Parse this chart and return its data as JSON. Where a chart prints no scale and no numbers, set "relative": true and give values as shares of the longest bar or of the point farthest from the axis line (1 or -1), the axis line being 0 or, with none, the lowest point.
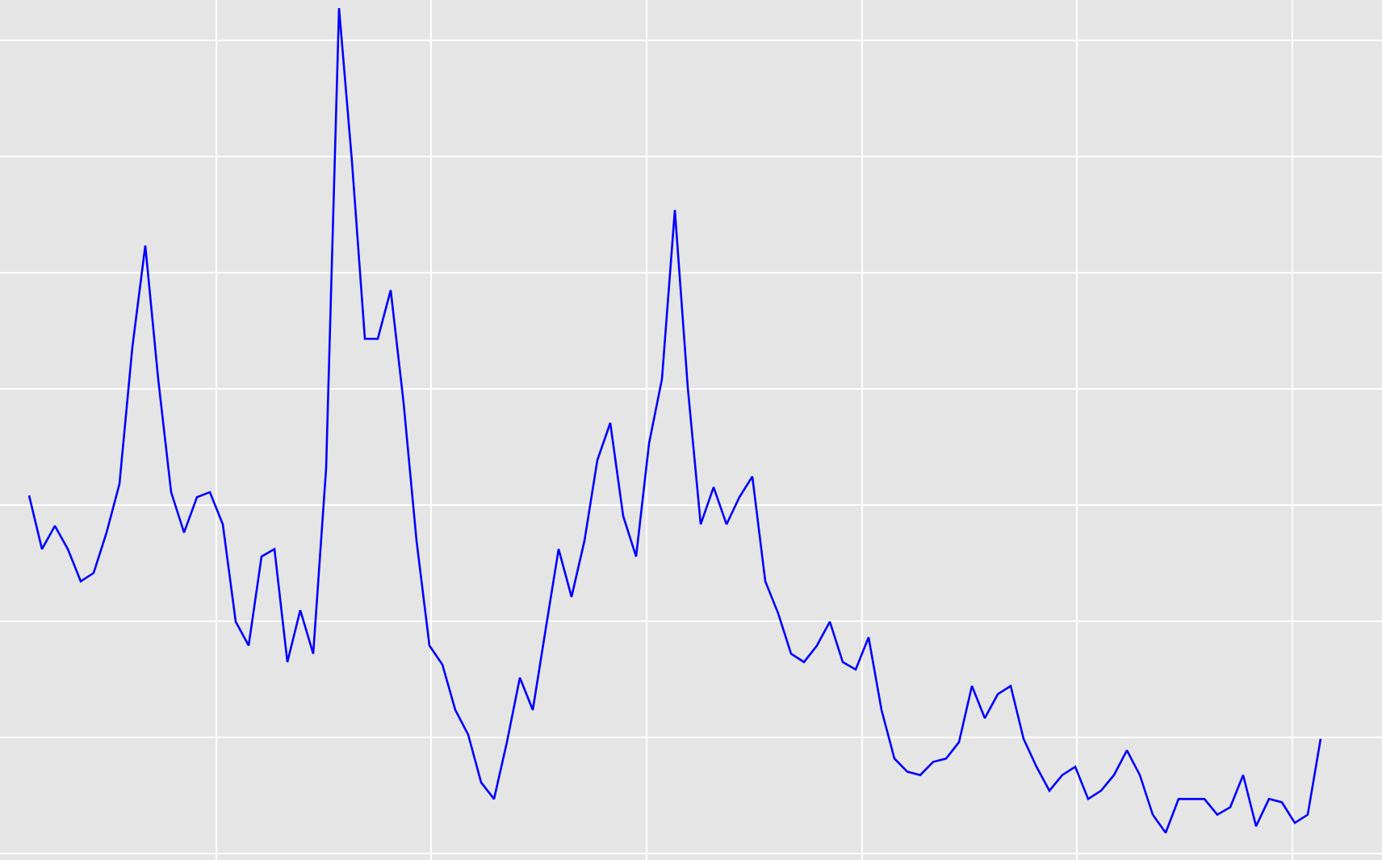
{
  "chart_data": {
    "type": "line",
    "relative": true,
    "grid": true,
    "legend": false,
    "categories": [
      null,
      null,
      null,
      null,
      null,
      null,
      null,
      null,
      null,
      null,
      null,
      null,
      null,
      null,
      null,
      null,
      null,
      null,
      null,
      null,
      null,
      null,
      null,
      null,
      null,
      null,
      null,
      null,
      null,
      null,
      null,
      null,
      null,
      null,
      null,
      null,
      null,
      null,
      null,
      null,
      null,
      null,
      null,
      null,
      null,
      null,
      null,
      null,
      null,
      null,
      null,
      null,
      null,
      null,
      null,
      null,
      null,
      null,
      null,
      null,
      null,
      null,
      null,
      null,
      null,
      null,
      null,
      null,
      null,
      null,
      null,
      null,
      null,
      null,
      null,
      null,
      null,
      null,
      null,
      null,
      null,
      null,
      null,
      null,
      null,
      null,
      null,
      null,
      null,
      null,
      null,
      null,
      null,
      null,
      null,
      null,
      null,
      null,
      null,
      null,
      null
    ],
    "series": [
      {
        "color": "#0000ff",
        "values": [
          0.409,
          0.344,
          0.372,
          0.344,
          0.305,
          0.315,
          0.364,
          0.423,
          0.589,
          0.712,
          0.55,
          0.413,
          0.364,
          0.407,
          0.413,
          0.374,
          0.256,
          0.227,
          0.335,
          0.344,
          0.207,
          0.27,
          0.217,
          0.442,
          1.0,
          0.814,
          0.599,
          0.599,
          0.658,
          0.521,
          0.354,
          0.227,
          0.204,
          0.149,
          0.119,
          0.061,
          0.041,
          0.11,
          0.188,
          0.149,
          0.247,
          0.344,
          0.286,
          0.354,
          0.452,
          0.497,
          0.384,
          0.335,
          0.472,
          0.55,
          0.755,
          0.54,
          0.374,
          0.419,
          0.374,
          0.407,
          0.432,
          0.305,
          0.266,
          0.217,
          0.207,
          0.227,
          0.256,
          0.207,
          0.198,
          0.237,
          0.149,
          0.09,
          0.074,
          0.07,
          0.086,
          0.09,
          0.11,
          0.178,
          0.139,
          0.168,
          0.178,
          0.114,
          0.08,
          0.051,
          0.07,
          0.08,
          0.041,
          0.051,
          0.07,
          0.1,
          0.07,
          0.022,
          0,
          0.041,
          0.041,
          0.041,
          0.022,
          0.031,
          0.07,
          0.008,
          0.041,
          0.037,
          0.012,
          0.022,
          0.114
        ]
      }
    ]
  }
}
